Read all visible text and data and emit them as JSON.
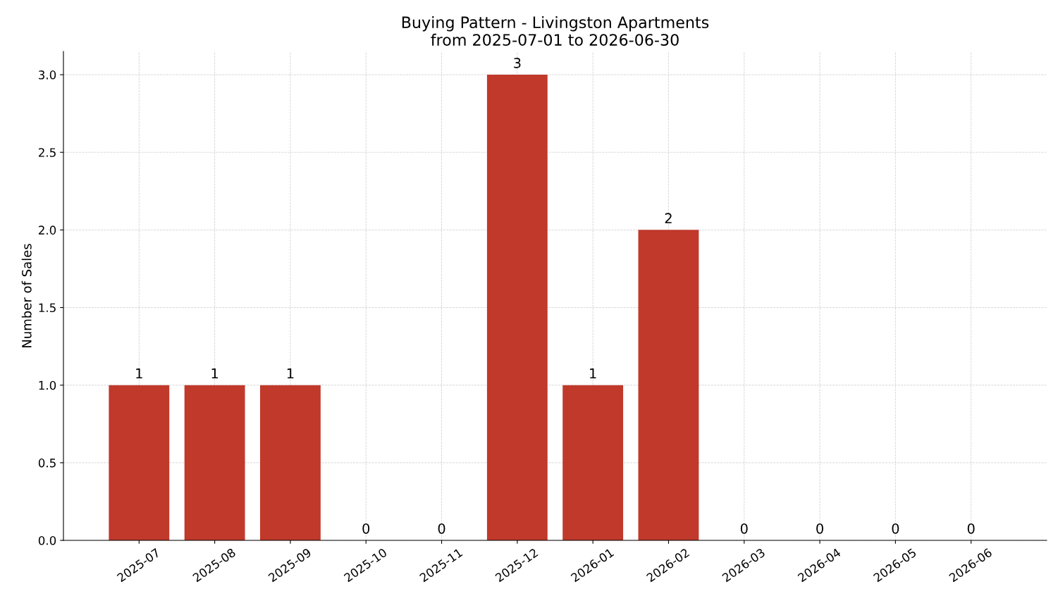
{
  "chart_data": {
    "type": "bar",
    "title": "Buying Pattern - Livingston Apartments\nfrom 2025-07-01 to 2026-06-30",
    "ylabel": "Number of Sales",
    "categories": [
      "2025-07",
      "2025-08",
      "2025-09",
      "2025-10",
      "2025-11",
      "2025-12",
      "2026-01",
      "2026-02",
      "2026-03",
      "2026-04",
      "2026-05",
      "2026-06"
    ],
    "values": [
      1,
      1,
      1,
      0,
      0,
      3,
      1,
      2,
      0,
      0,
      0,
      0
    ],
    "color": "#c0392b",
    "ylim": [
      0,
      3.15
    ],
    "yticks": [
      {
        "value": 0,
        "label": "0.0"
      },
      {
        "value": 0.5,
        "label": "0.5"
      },
      {
        "value": 1,
        "label": "1.0"
      },
      {
        "value": 1.5,
        "label": "1.5"
      },
      {
        "value": 2,
        "label": "2.0"
      },
      {
        "value": 2.5,
        "label": "2.5"
      },
      {
        "value": 3,
        "label": "3.0"
      }
    ],
    "grid": true,
    "data_labels": true,
    "legend": false
  }
}
